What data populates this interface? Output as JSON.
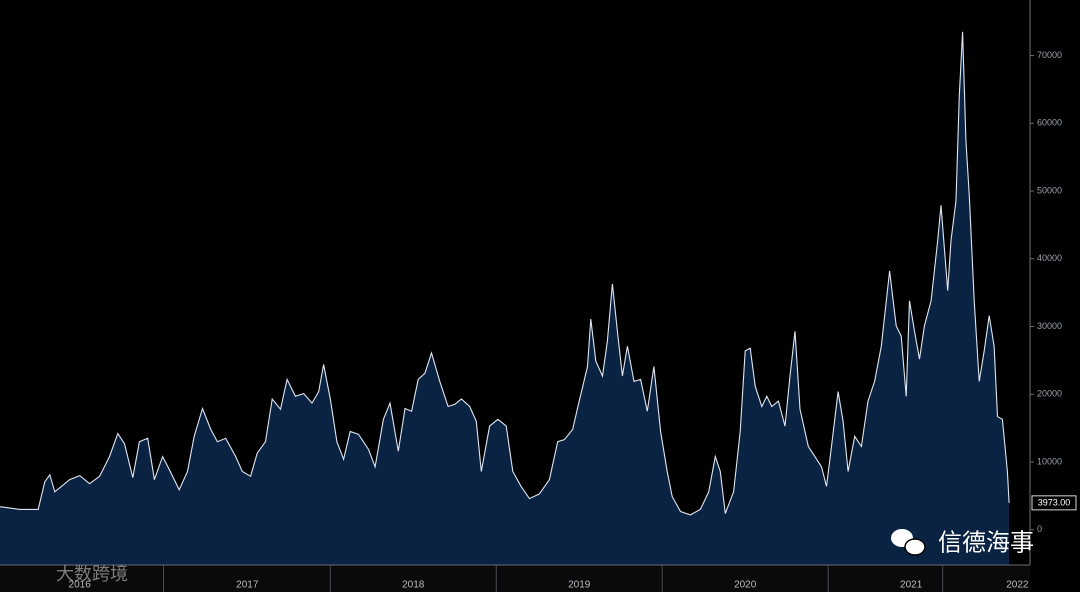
{
  "chart_data": {
    "type": "area",
    "x": [
      2016.0,
      2016.12,
      2016.23,
      2016.27,
      2016.3,
      2016.33,
      2016.37,
      2016.42,
      2016.48,
      2016.54,
      2016.6,
      2016.66,
      2016.71,
      2016.75,
      2016.8,
      2016.84,
      2016.89,
      2016.93,
      2016.98,
      2017.02,
      2017.08,
      2017.13,
      2017.17,
      2017.22,
      2017.27,
      2017.31,
      2017.36,
      2017.42,
      2017.46,
      2017.51,
      2017.55,
      2017.6,
      2017.64,
      2017.69,
      2017.73,
      2017.78,
      2017.83,
      2017.88,
      2017.92,
      2017.95,
      2017.99,
      2018.03,
      2018.07,
      2018.11,
      2018.16,
      2018.22,
      2018.26,
      2018.31,
      2018.35,
      2018.4,
      2018.44,
      2018.48,
      2018.52,
      2018.56,
      2018.6,
      2018.65,
      2018.7,
      2018.74,
      2018.78,
      2018.83,
      2018.87,
      2018.9,
      2018.95,
      2019.0,
      2019.05,
      2019.09,
      2019.14,
      2019.19,
      2019.25,
      2019.31,
      2019.36,
      2019.4,
      2019.45,
      2019.49,
      2019.54,
      2019.56,
      2019.59,
      2019.63,
      2019.66,
      2019.69,
      2019.72,
      2019.75,
      2019.78,
      2019.82,
      2019.86,
      2019.9,
      2019.94,
      2019.98,
      2020.02,
      2020.05,
      2020.1,
      2020.16,
      2020.22,
      2020.27,
      2020.31,
      2020.34,
      2020.37,
      2020.42,
      2020.46,
      2020.49,
      2020.52,
      2020.55,
      2020.59,
      2020.62,
      2020.65,
      2020.69,
      2020.73,
      2020.76,
      2020.79,
      2020.82,
      2020.87,
      2020.91,
      2020.95,
      2020.98,
      2021.01,
      2021.05,
      2021.08,
      2021.11,
      2021.15,
      2021.19,
      2021.23,
      2021.27,
      2021.31,
      2021.36,
      2021.4,
      2021.43,
      2021.46,
      2021.48,
      2021.51,
      2021.54,
      2021.57,
      2021.61,
      2021.65,
      2021.67,
      2021.71,
      2021.73,
      2021.76,
      2021.78,
      2021.8,
      2021.82,
      2021.84,
      2021.87,
      2021.9,
      2021.93,
      2021.96,
      2021.99,
      2022.01,
      2022.04,
      2022.07,
      2022.08
    ],
    "values": [
      3400,
      3000,
      3000,
      7100,
      8100,
      5600,
      6400,
      7400,
      8000,
      6800,
      7900,
      10800,
      14200,
      12700,
      7700,
      13000,
      13500,
      7400,
      10800,
      8900,
      5900,
      8600,
      13800,
      17900,
      14800,
      13000,
      13500,
      10800,
      8600,
      7900,
      11300,
      13000,
      19300,
      17800,
      22200,
      19700,
      20100,
      18700,
      20400,
      24400,
      19300,
      13000,
      10400,
      14500,
      14100,
      11900,
      9300,
      16300,
      18700,
      11600,
      17900,
      17500,
      22200,
      23100,
      26100,
      21900,
      18200,
      18500,
      19300,
      18200,
      16000,
      8600,
      15300,
      16300,
      15300,
      8600,
      6400,
      4600,
      5300,
      7400,
      13000,
      13300,
      14800,
      19000,
      24100,
      31100,
      24900,
      22700,
      27900,
      36300,
      29300,
      22700,
      27100,
      21900,
      22200,
      17500,
      24100,
      14500,
      8600,
      4900,
      2700,
      2200,
      3000,
      5600,
      10800,
      8600,
      2400,
      5600,
      14500,
      26400,
      26800,
      21200,
      18200,
      19700,
      18200,
      19000,
      15300,
      22700,
      29300,
      17800,
      12300,
      10800,
      9300,
      6400,
      12300,
      20400,
      16000,
      8600,
      13800,
      12300,
      19000,
      21900,
      27100,
      38200,
      30100,
      28600,
      19700,
      33800,
      29300,
      25200,
      30100,
      33800,
      42700,
      47900,
      35300,
      42700,
      48600,
      64100,
      73500,
      57500,
      49300,
      33800,
      21900,
      26400,
      31600,
      27100,
      16700,
      16300,
      8600,
      3973
    ],
    "color": "#0b2343",
    "line_color": "#dfe6f0",
    "last_value_label": "3973.00",
    "xlim": [
      2016,
      2022.2
    ],
    "ylim": [
      -5200,
      78200
    ],
    "xticks": [
      {
        "value": 2016.48,
        "label": "2016"
      },
      {
        "value": 2017.49,
        "label": "2017"
      },
      {
        "value": 2018.49,
        "label": "2018"
      },
      {
        "value": 2019.49,
        "label": "2019"
      },
      {
        "value": 2020.49,
        "label": "2020"
      },
      {
        "value": 2021.49,
        "label": "2021"
      },
      {
        "value": 2022.13,
        "label": "2022"
      }
    ],
    "yticks": [
      0,
      10000,
      20000,
      30000,
      40000,
      50000,
      60000,
      70000
    ],
    "watermarks": [
      "信德海事",
      "大数跨境"
    ]
  }
}
